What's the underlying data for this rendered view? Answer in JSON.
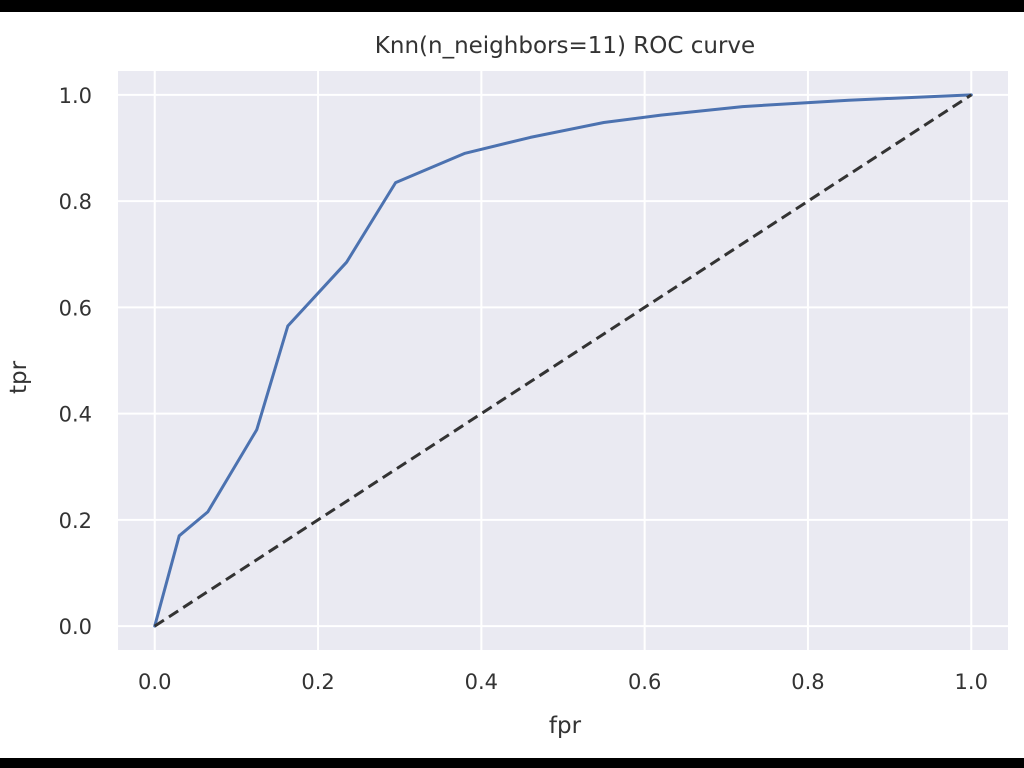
{
  "chart_data": {
    "type": "line",
    "title": "Knn(n_neighbors=11) ROC curve",
    "xlabel": "fpr",
    "ylabel": "tpr",
    "xlim": [
      -0.045,
      1.045
    ],
    "ylim": [
      -0.045,
      1.045
    ],
    "xticks": [
      "0.0",
      "0.2",
      "0.4",
      "0.6",
      "0.8",
      "1.0"
    ],
    "yticks": [
      "0.0",
      "0.2",
      "0.4",
      "0.6",
      "0.8",
      "1.0"
    ],
    "grid": true,
    "series": [
      {
        "style": "solid",
        "color": "#4c72b0",
        "x": [
          0.0,
          0.03,
          0.065,
          0.125,
          0.163,
          0.235,
          0.295,
          0.38,
          0.46,
          0.55,
          0.62,
          0.72,
          0.85,
          1.0
        ],
        "y": [
          0.0,
          0.17,
          0.215,
          0.37,
          0.565,
          0.685,
          0.835,
          0.89,
          0.92,
          0.948,
          0.962,
          0.978,
          0.99,
          1.0
        ]
      },
      {
        "style": "dashed",
        "color": "#333333",
        "x": [
          0.0,
          1.0
        ],
        "y": [
          0.0,
          1.0
        ]
      }
    ]
  },
  "colors": {
    "plot_background": "#eaeaf2",
    "grid": "#ffffff",
    "roc_line": "#4c72b0",
    "diagonal": "#333333"
  }
}
